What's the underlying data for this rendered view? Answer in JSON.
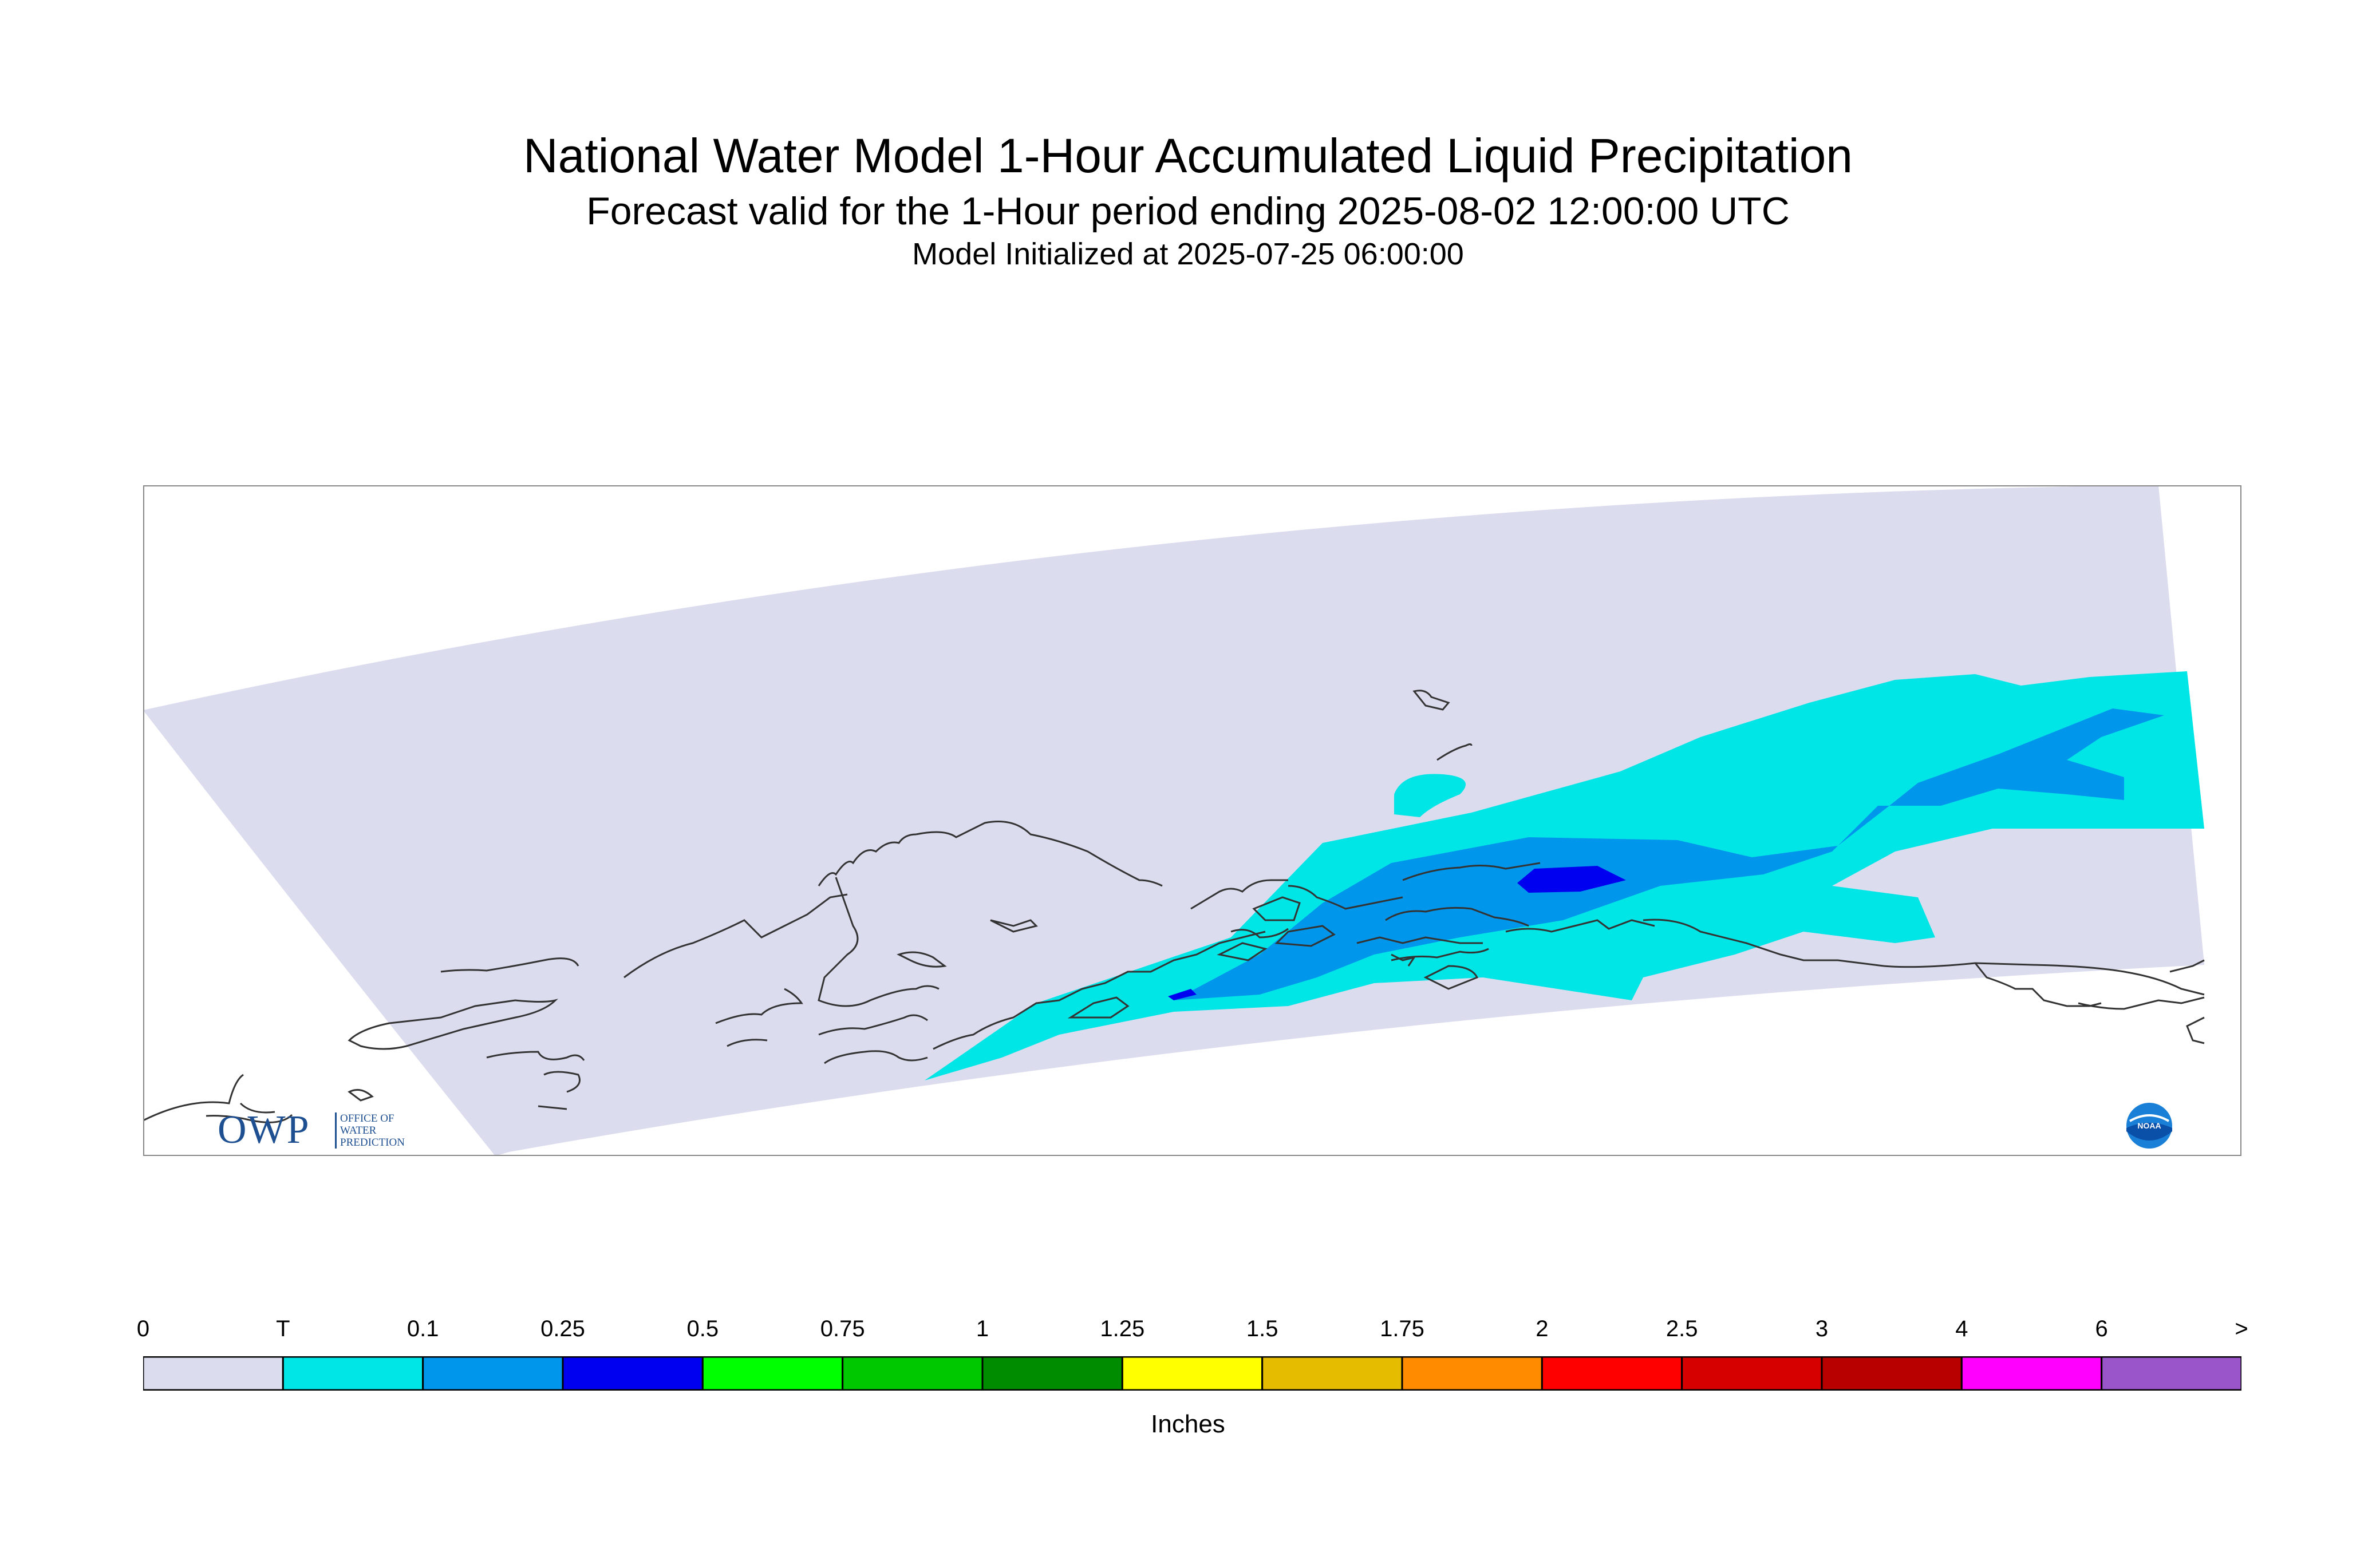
{
  "title": "National Water Model 1-Hour Accumulated Liquid Precipitation",
  "subtitle": "Forecast valid for the 1-Hour period ending 2025-08-02 12:00:00 UTC",
  "init_line": "Model Initialized at 2025-07-25 06:00:00",
  "logos": {
    "owp_mark": "OWP",
    "owp_text_1": "OFFICE OF",
    "owp_text_2": "WATER",
    "owp_text_3": "PREDICTION",
    "noaa_text": "NOAA"
  },
  "legend": {
    "units": "Inches",
    "tick_labels": [
      "0",
      "T",
      "0.1",
      "0.25",
      "0.5",
      "0.75",
      "1",
      "1.25",
      "1.5",
      "1.75",
      "2",
      "2.5",
      "3",
      "4",
      "6",
      ">"
    ],
    "colors": [
      "#dcdcef",
      "#00e5e5",
      "#0096ec",
      "#0000f0",
      "#00ff00",
      "#00c800",
      "#008c00",
      "#ffff00",
      "#e6bc00",
      "#ff8c00",
      "#ff0000",
      "#d60000",
      "#b90000",
      "#ff00ff",
      "#9955c9"
    ]
  },
  "map_colors": {
    "domain": "#dcdcef",
    "trace": "#00e5e5",
    "tenth": "#0096ec",
    "quarter": "#0000f0",
    "coast": "#333333",
    "frame": "#888888"
  }
}
